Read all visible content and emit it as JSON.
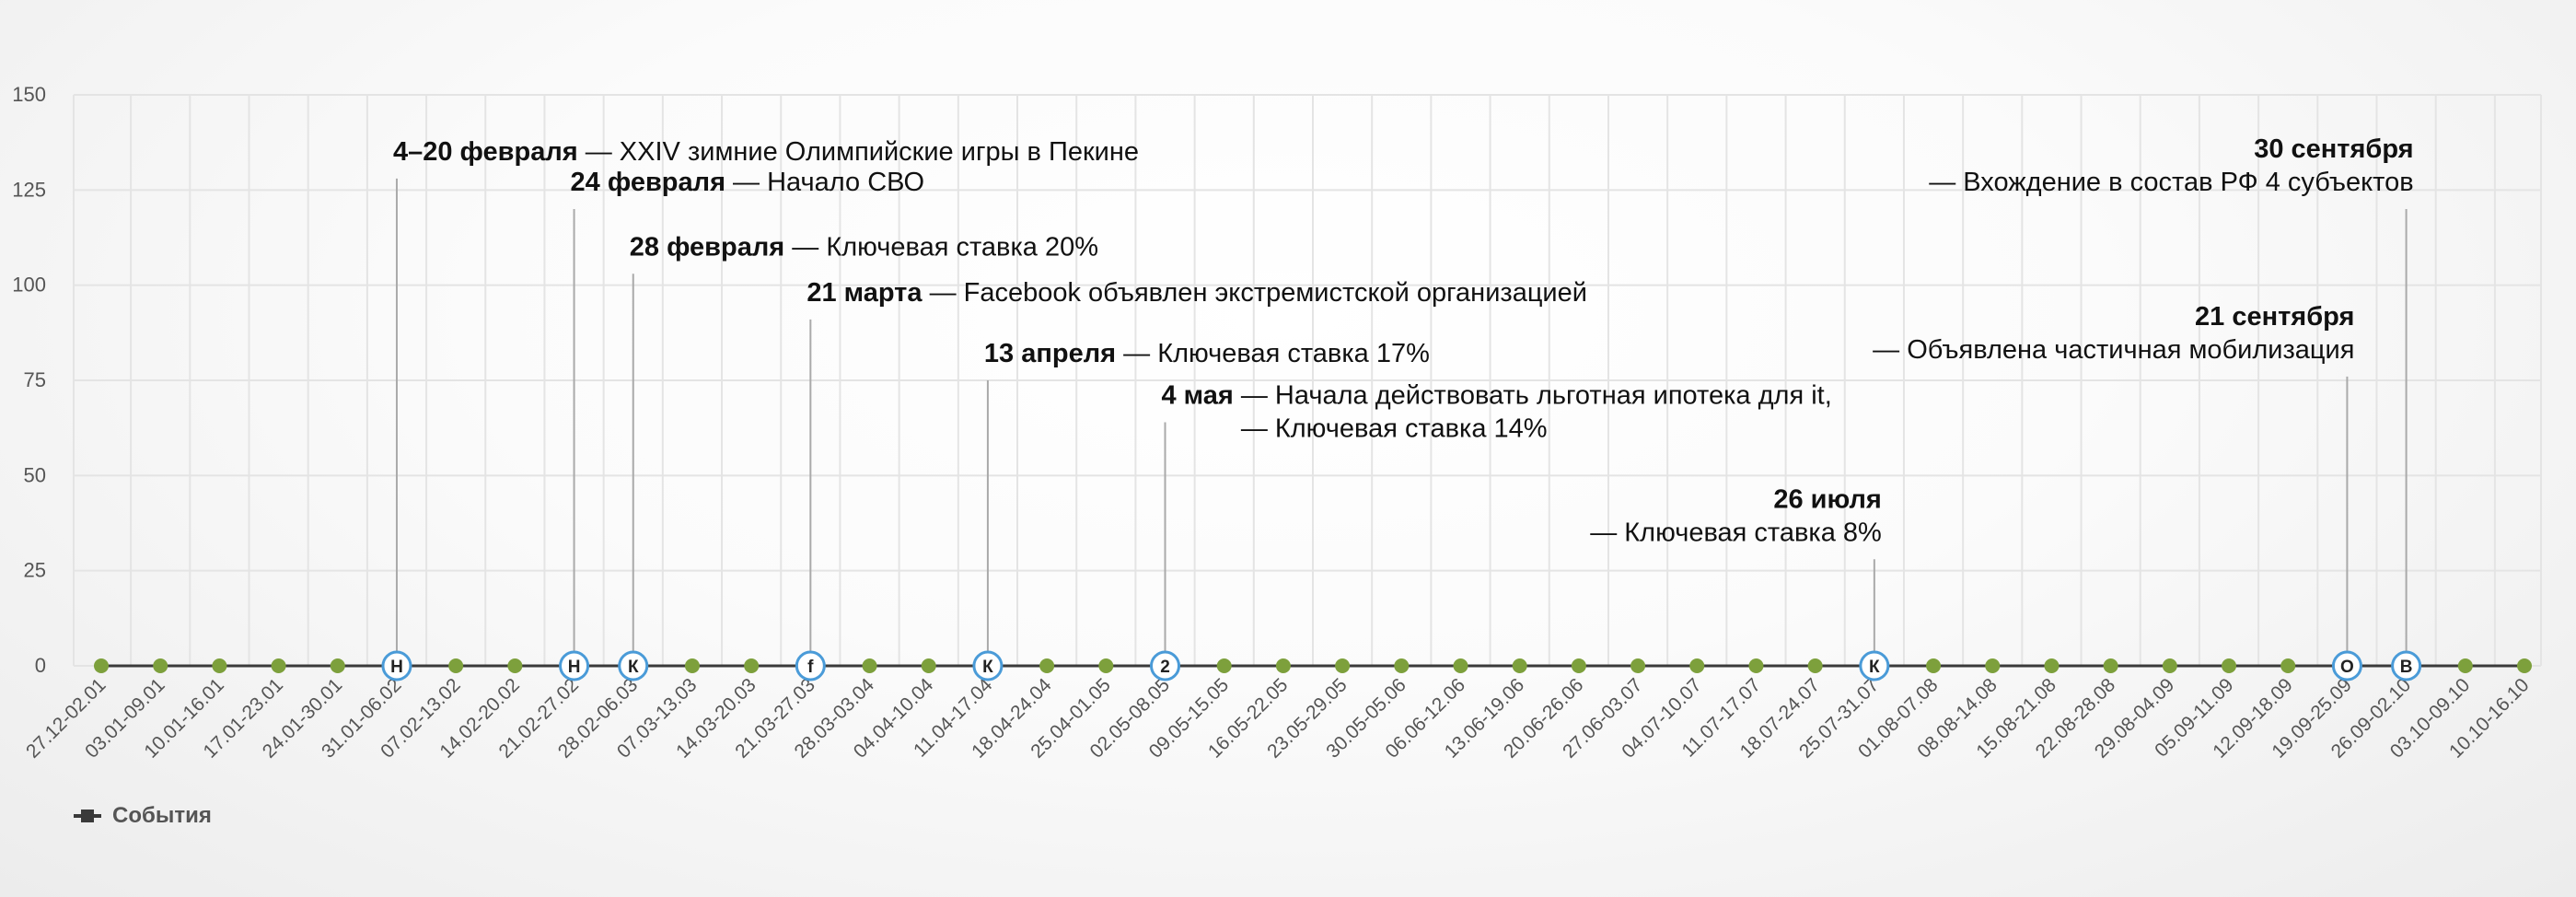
{
  "chart_data": {
    "type": "line",
    "title": "",
    "xlabel": "",
    "ylabel": "",
    "ylim": [
      0,
      150
    ],
    "y_ticks": [
      0,
      25,
      50,
      75,
      100,
      125,
      150
    ],
    "grid": true,
    "legend_position": "bottom-left",
    "categories": [
      "27.12-02.01",
      "03.01-09.01",
      "10.01-16.01",
      "17.01-23.01",
      "24.01-30.01",
      "31.01-06.02",
      "07.02-13.02",
      "14.02-20.02",
      "21.02-27.02",
      "28.02-06.03",
      "07.03-13.03",
      "14.03-20.03",
      "21.03-27.03",
      "28.03-03.04",
      "04.04-10.04",
      "11.04-17.04",
      "18.04-24.04",
      "25.04-01.05",
      "02.05-08.05",
      "09.05-15.05",
      "16.05-22.05",
      "23.05-29.05",
      "30.05-05.06",
      "06.06-12.06",
      "13.06-19.06",
      "20.06-26.06",
      "27.06-03.07",
      "04.07-10.07",
      "11.07-17.07",
      "18.07-24.07",
      "25.07-31.07",
      "01.08-07.08",
      "08.08-14.08",
      "15.08-21.08",
      "22.08-28.08",
      "29.08-04.09",
      "05.09-11.09",
      "12.09-18.09",
      "19.09-25.09",
      "26.09-02.10",
      "03.10-09.10",
      "10.10-16.10"
    ],
    "series": [
      {
        "name": "События",
        "values": [
          0,
          0,
          0,
          0,
          0,
          0,
          0,
          0,
          0,
          0,
          0,
          0,
          0,
          0,
          0,
          0,
          0,
          0,
          0,
          0,
          0,
          0,
          0,
          0,
          0,
          0,
          0,
          0,
          0,
          0,
          0,
          0,
          0,
          0,
          0,
          0,
          0,
          0,
          0,
          0,
          0,
          0
        ]
      }
    ],
    "event_markers": [
      {
        "index": 5,
        "letter": "Н",
        "value": 128,
        "date": "4–20 февраля",
        "lines": [
          "— XXIV зимние Олимпийские игры в Пекине"
        ],
        "align": "left"
      },
      {
        "index": 8,
        "letter": "Н",
        "value": 120,
        "date": "24 февраля",
        "lines": [
          "— Начало СВО"
        ],
        "align": "left"
      },
      {
        "index": 9,
        "letter": "К",
        "value": 103,
        "date": "28 февраля",
        "lines": [
          "— Ключевая ставка 20%"
        ],
        "align": "left"
      },
      {
        "index": 12,
        "letter": "f",
        "value": 91,
        "date": "21 марта",
        "lines": [
          "— Facebook объявлен экстремистской организацией"
        ],
        "align": "left"
      },
      {
        "index": 15,
        "letter": "К",
        "value": 75,
        "date": "13 апреля",
        "lines": [
          "— Ключевая ставка 17%"
        ],
        "align": "left"
      },
      {
        "index": 18,
        "letter": "2",
        "value": 64,
        "date": "4 мая",
        "lines": [
          "— Начала действовать льготная ипотека для it,",
          "— Ключевая ставка 14%"
        ],
        "align": "left"
      },
      {
        "index": 30,
        "letter": "К",
        "value": 28,
        "date": "26 июля",
        "lines": [
          "— Ключевая ставка 8%"
        ],
        "align": "right"
      },
      {
        "index": 38,
        "letter": "О",
        "value": 76,
        "date": "21 сентября",
        "lines": [
          "— Объявлена частичная мобилизация"
        ],
        "align": "right"
      },
      {
        "index": 39,
        "letter": "В",
        "value": 120,
        "date": "30 сентября",
        "lines": [
          "— Вхождение в состав РФ 4 субъектов"
        ],
        "align": "right"
      }
    ],
    "colors": {
      "point": "#7da03c",
      "line": "#3a3a3a",
      "marker_border": "#4a9bd8",
      "grid": "#e4e4e4",
      "connector": "#aaaaaa"
    }
  },
  "legend": {
    "label": "События"
  }
}
